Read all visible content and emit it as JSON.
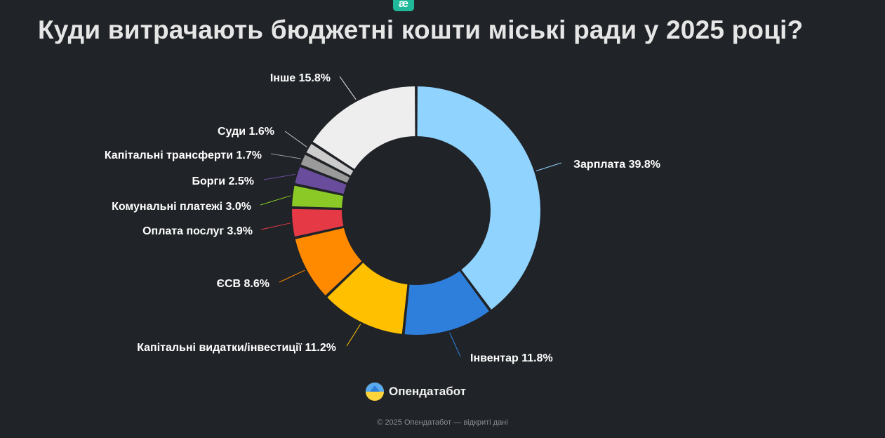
{
  "title": "Куди витрачають бюджетні кошти міські ради у 2025 році?",
  "top_logo": {
    "glyph": "æ",
    "color": "#1fb89a"
  },
  "brand": {
    "name": "Опендатабот",
    "icon": "opendatabot-logo-icon"
  },
  "footer": "© 2025 Опендатабот — відкриті дані",
  "chart_data": {
    "type": "pie",
    "donut": true,
    "title": "Куди витрачають бюджетні кошти міські ради у 2025 році?",
    "categories": [
      "Зарплата",
      "Інвентар",
      "Капітальні видатки/інвестиції",
      "ЄСВ",
      "Оплата послуг",
      "Комунальні платежі",
      "Борги",
      "Капітальні трансферти",
      "Суди",
      "Інше"
    ],
    "values": [
      39.8,
      11.8,
      11.2,
      8.6,
      3.9,
      3.0,
      2.5,
      1.7,
      1.6,
      15.8
    ],
    "labels": [
      "Зарплата 39.8%",
      "Інвентар 11.8%",
      "Капітальні видатки/інвестиції 11.2%",
      "ЄСВ 8.6%",
      "Оплата послуг 3.9%",
      "Комунальні платежі 3.0%",
      "Борги 2.5%",
      "Капітальні трансферти 1.7%",
      "Суди 1.6%",
      "Інше 15.8%"
    ],
    "colors": [
      "#8fd3fe",
      "#2e7fdb",
      "#ffc000",
      "#ff8a00",
      "#e63946",
      "#8ac926",
      "#6a4c9c",
      "#9a9a9a",
      "#cccccc",
      "#eeeeee"
    ],
    "unit": "%"
  }
}
